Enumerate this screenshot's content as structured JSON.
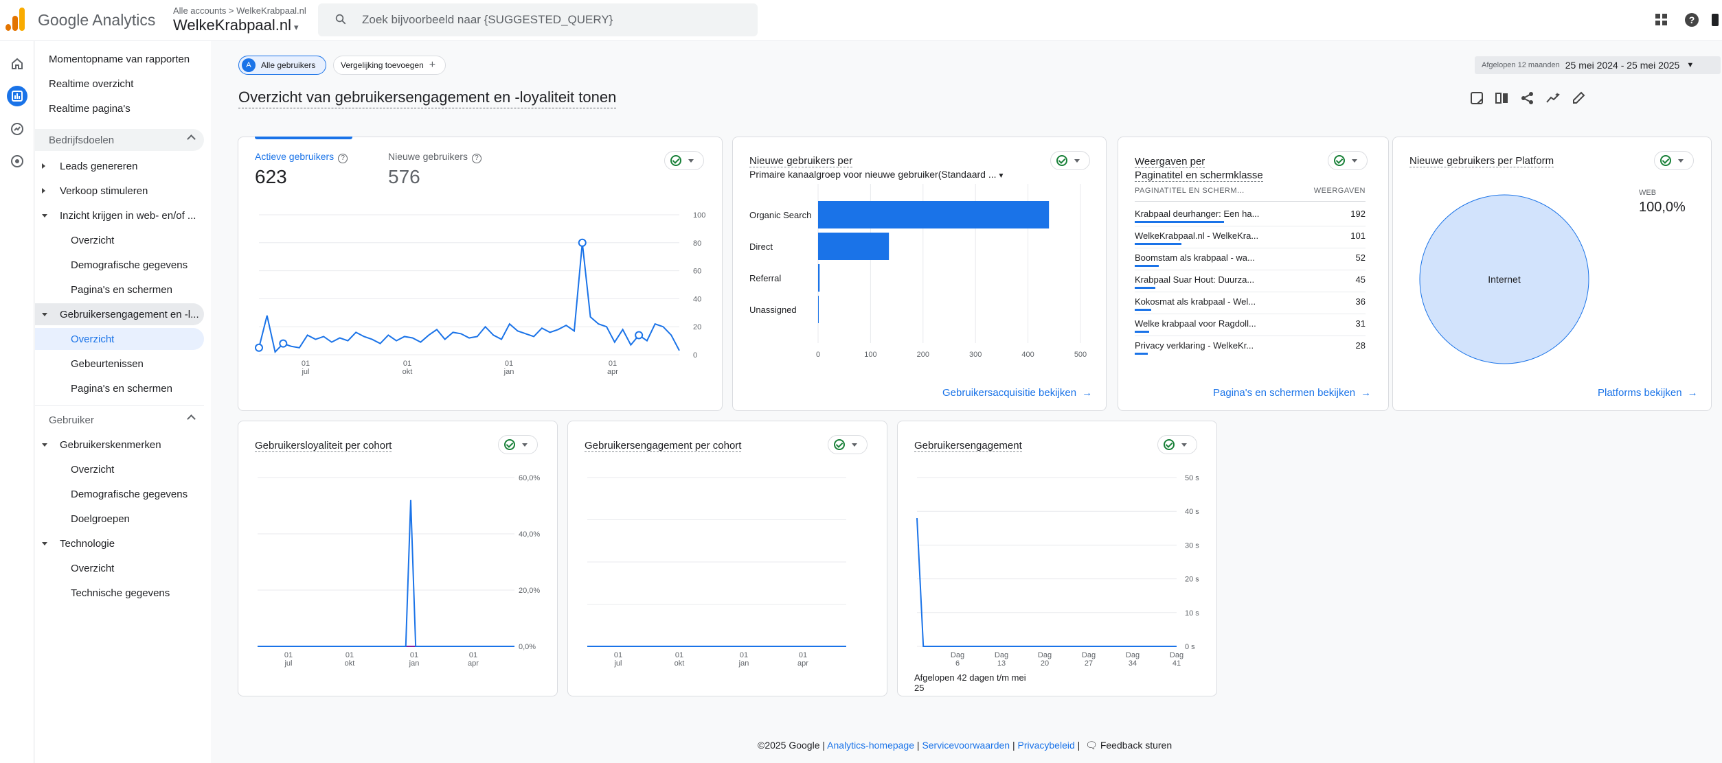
{
  "app": {
    "brand": "Google Analytics",
    "account_crumb": "Alle accounts > WelkeKrabpaal.nl",
    "property_name": "WelkeKrabpaal.nl"
  },
  "search": {
    "placeholder": "Zoek bijvoorbeeld naar {SUGGESTED_QUERY}"
  },
  "colors": {
    "accent": "#1a73e8",
    "ok_green": "#188038",
    "purple_line": "#7b1fa2"
  },
  "sidebar": {
    "items": [
      {
        "label": "Momentopname van rapporten"
      },
      {
        "label": "Realtime overzicht"
      },
      {
        "label": "Realtime pagina's"
      },
      {
        "label": "Bedrijfsdoelen"
      },
      {
        "label": "Leads genereren"
      },
      {
        "label": "Verkoop stimuleren"
      },
      {
        "label": "Inzicht krijgen in web- en/of ..."
      },
      {
        "label": "Overzicht"
      },
      {
        "label": "Demografische gegevens"
      },
      {
        "label": "Pagina's en schermen"
      },
      {
        "label": "Gebruikersengagement en -l..."
      },
      {
        "label": "Overzicht"
      },
      {
        "label": "Gebeurtenissen"
      },
      {
        "label": "Pagina's en schermen"
      },
      {
        "label": "Gebruiker"
      },
      {
        "label": "Gebruikerskenmerken"
      },
      {
        "label": "Overzicht"
      },
      {
        "label": "Demografische gegevens"
      },
      {
        "label": "Doelgroepen"
      },
      {
        "label": "Technologie"
      },
      {
        "label": "Overzicht"
      },
      {
        "label": "Technische gegevens"
      }
    ]
  },
  "filters": {
    "segment_badge": "A",
    "segment_label": "Alle gebruikers",
    "compare_label": "Vergelijking toevoegen"
  },
  "date_range": {
    "preset": "Afgelopen 12 maanden",
    "range": "25 mei 2024 - 25 mei 2025"
  },
  "page_title": "Overzicht van gebruikersengagement en -loyaliteit tonen",
  "card_users": {
    "metric1_label": "Actieve gebruikers",
    "metric1_value": "623",
    "metric2_label": "Nieuwe gebruikers",
    "metric2_value": "576"
  },
  "card_channels": {
    "title": "Nieuwe gebruikers per",
    "subtitle": "Primaire kanaalgroep voor nieuwe gebruiker(Standaard ...",
    "link": "Gebruikersacquisitie bekijken"
  },
  "card_pages": {
    "title_line1": "Weergaven per",
    "title_line2": "Paginatitel en schermklasse",
    "col1": "PAGINATITEL EN SCHERM...",
    "col2": "WEERGAVEN",
    "rows": [
      {
        "name": "Krabpaal deurhanger: Een ha...",
        "value": "192",
        "frac": 1.0
      },
      {
        "name": "WelkeKrabpaal.nl - WelkeKra...",
        "value": "101",
        "frac": 0.526
      },
      {
        "name": "Boomstam als krabpaal - wa...",
        "value": "52",
        "frac": 0.271
      },
      {
        "name": "Krabpaal Suar Hout: Duurza...",
        "value": "45",
        "frac": 0.234
      },
      {
        "name": "Kokosmat als krabpaal - Wel...",
        "value": "36",
        "frac": 0.188
      },
      {
        "name": "Welke krabpaal voor Ragdoll...",
        "value": "31",
        "frac": 0.161
      },
      {
        "name": "Privacy verklaring - WelkeKr...",
        "value": "28",
        "frac": 0.146
      }
    ],
    "link": "Pagina's en schermen bekijken"
  },
  "card_platform": {
    "title": "Nieuwe gebruikers per Platform",
    "legend_label": "WEB",
    "legend_value": "100,0%",
    "slice_label": "Internet",
    "link": "Platforms bekijken"
  },
  "card_loyalty": {
    "title": "Gebruikersloyaliteit per cohort"
  },
  "card_cohort_engagement": {
    "title": "Gebruikersengagement per cohort"
  },
  "card_engagement": {
    "title": "Gebruikersengagement",
    "footnote": "Afgelopen 42 dagen t/m mei 25"
  },
  "footer": {
    "copyright": "©2025 Google |",
    "link1": "Analytics-homepage",
    "link2": "Servicevoorwaarden",
    "link3": "Privacybeleid",
    "feedback": "Feedback sturen",
    "sep": "|"
  },
  "chart_data": [
    {
      "type": "line",
      "series": [
        {
          "values": [
            5,
            28,
            2,
            8,
            6,
            5,
            14,
            11,
            13,
            9,
            12,
            10,
            16,
            13,
            11,
            8,
            14,
            10,
            13,
            12,
            9,
            14,
            18,
            11,
            16,
            15,
            12,
            13,
            20,
            14,
            11,
            22,
            17,
            15,
            13,
            19,
            16,
            18,
            21,
            17,
            80,
            27,
            22,
            20,
            9,
            18,
            7,
            14,
            10,
            22,
            20,
            14,
            3
          ]
        }
      ],
      "y_ticks": [
        "100",
        "80",
        "60",
        "40",
        "20",
        "0"
      ],
      "x_ticks": [
        {
          "line1": "01",
          "line2": "jul"
        },
        {
          "line1": "01",
          "line2": "okt"
        },
        {
          "line1": "01",
          "line2": "jan"
        },
        {
          "line1": "01",
          "line2": "apr"
        }
      ],
      "ylim": [
        0,
        100
      ]
    },
    {
      "type": "bar",
      "categories": [
        "Organic Search",
        "Direct",
        "Referral",
        "Unassigned"
      ],
      "values": [
        440,
        135,
        3,
        1
      ],
      "x_ticks": [
        "0",
        "100",
        "200",
        "300",
        "400",
        "500"
      ],
      "xlim": [
        0,
        500
      ]
    },
    {
      "type": "pie",
      "categories": [
        "Internet"
      ],
      "values": [
        100
      ]
    },
    {
      "type": "line",
      "series": [
        {
          "values": [
            0,
            0,
            0,
            0,
            0,
            0,
            0,
            0,
            0,
            0,
            0,
            0,
            0,
            0,
            0,
            0,
            0,
            0,
            0,
            0,
            0,
            0,
            0,
            0,
            0,
            0,
            0,
            0,
            0,
            0,
            0,
            52,
            0,
            0,
            0,
            0,
            0,
            0,
            0,
            0,
            0,
            0,
            0,
            0,
            0,
            0,
            0,
            0,
            0,
            0,
            0,
            0,
            0
          ]
        }
      ],
      "y_ticks": [
        "60,0%",
        "40,0%",
        "20,0%",
        "0,0%"
      ],
      "x_ticks": [
        {
          "line1": "01",
          "line2": "jul"
        },
        {
          "line1": "01",
          "line2": "okt"
        },
        {
          "line1": "01",
          "line2": "jan"
        },
        {
          "line1": "01",
          "line2": "apr"
        }
      ],
      "ylim": [
        0,
        60
      ]
    },
    {
      "type": "line",
      "series": [
        {
          "values": [
            0,
            0,
            0,
            0,
            0,
            0,
            0,
            0,
            0,
            0
          ]
        }
      ],
      "x_ticks": [
        {
          "line1": "01",
          "line2": "jul"
        },
        {
          "line1": "01",
          "line2": "okt"
        },
        {
          "line1": "01",
          "line2": "jan"
        },
        {
          "line1": "01",
          "line2": "apr"
        }
      ]
    },
    {
      "type": "line",
      "series": [
        {
          "values": [
            38,
            0,
            0,
            0,
            0,
            0,
            0,
            0,
            0,
            0,
            0,
            0,
            0,
            0,
            0,
            0,
            0,
            0,
            0,
            0,
            0,
            0,
            0,
            0,
            0,
            0,
            0,
            0,
            0,
            0,
            0,
            0,
            0,
            0,
            0,
            0,
            0,
            0,
            0,
            0,
            0,
            0
          ]
        }
      ],
      "y_ticks": [
        "50 s",
        "40 s",
        "30 s",
        "20 s",
        "10 s",
        "0 s"
      ],
      "x_ticks": [
        {
          "line1": "Dag",
          "line2": "6"
        },
        {
          "line1": "Dag",
          "line2": "13"
        },
        {
          "line1": "Dag",
          "line2": "20"
        },
        {
          "line1": "Dag",
          "line2": "27"
        },
        {
          "line1": "Dag",
          "line2": "34"
        },
        {
          "line1": "Dag",
          "line2": "41"
        }
      ],
      "ylim": [
        0,
        50
      ]
    }
  ]
}
